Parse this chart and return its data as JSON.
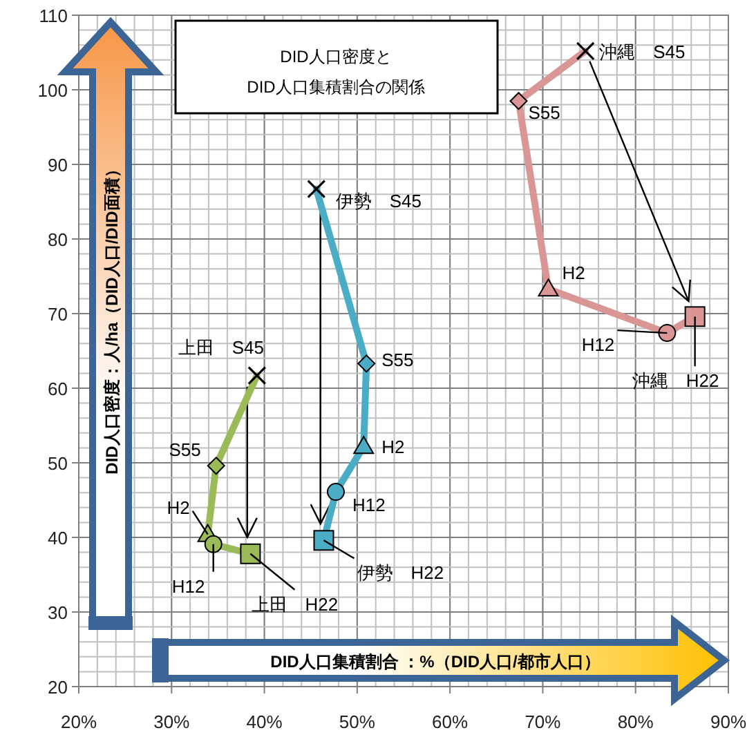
{
  "chart_data": {
    "type": "line",
    "title": "DID人口密度と\nDID人口集積割合の関係",
    "xlabel": "DID人口集積割合 ：%（DID人口/都市人口）",
    "ylabel": "DID人口密度：人/ha（DID人口/DID面積）",
    "xlim": [
      20,
      90
    ],
    "ylim": [
      20,
      110
    ],
    "xticks": [
      {
        "value": 20,
        "label": "20%"
      },
      {
        "value": 30,
        "label": "30%"
      },
      {
        "value": 40,
        "label": "40%"
      },
      {
        "value": 50,
        "label": "50%"
      },
      {
        "value": 60,
        "label": "60%"
      },
      {
        "value": 70,
        "label": "70%"
      },
      {
        "value": 80,
        "label": "80%"
      },
      {
        "value": 90,
        "label": "90%"
      }
    ],
    "yticks": [
      20,
      30,
      40,
      50,
      60,
      70,
      80,
      90,
      100,
      110
    ],
    "grid": true,
    "series": [
      {
        "type": "line",
        "marker": "none",
        "color": "#d99694",
        "x": [
          74.6,
          67.4,
          70.6,
          83.4,
          86.4
        ],
        "values": [
          105.2,
          98.5,
          73.3,
          67.4,
          69.6
        ]
      },
      {
        "type": "line",
        "marker": "none",
        "color": "#4bacc6",
        "x": [
          45.6,
          51.0,
          50.7,
          47.7,
          46.4
        ],
        "values": [
          86.7,
          63.3,
          52.2,
          46.1,
          39.6
        ]
      },
      {
        "type": "line",
        "marker": "none",
        "color": "#9bbb59",
        "x": [
          39.2,
          34.8,
          33.9,
          34.5,
          38.5
        ],
        "values": [
          61.7,
          49.6,
          40.4,
          39.1,
          37.8
        ]
      },
      {
        "type": "scatter",
        "marker": "cross",
        "x": [
          74.6,
          45.6,
          39.2
        ],
        "values": [
          105.2,
          86.7,
          61.7
        ],
        "colors": [
          "#000000",
          "#000000",
          "#000000"
        ]
      },
      {
        "type": "scatter",
        "marker": "diamond",
        "x": [
          67.4,
          51.0,
          34.8
        ],
        "values": [
          98.5,
          63.3,
          49.6
        ],
        "colors": [
          "#d99694",
          "#4bacc6",
          "#9bbb59"
        ]
      },
      {
        "type": "scatter",
        "marker": "triangle",
        "x": [
          70.6,
          50.7,
          33.9
        ],
        "values": [
          73.3,
          52.2,
          40.4
        ],
        "colors": [
          "#d99694",
          "#4bacc6",
          "#9bbb59"
        ]
      },
      {
        "type": "scatter",
        "marker": "circle",
        "x": [
          83.4,
          47.7,
          34.5
        ],
        "values": [
          67.4,
          46.1,
          39.1
        ],
        "colors": [
          "#d99694",
          "#4bacc6",
          "#9bbb59"
        ]
      },
      {
        "type": "scatter",
        "marker": "square",
        "x": [
          86.4,
          46.4,
          38.5
        ],
        "values": [
          69.6,
          39.6,
          37.8
        ],
        "colors": [
          "#d99694",
          "#4bacc6",
          "#9bbb59"
        ]
      }
    ],
    "annotations": [
      {
        "text": "沖縄　S45",
        "x": 74.6,
        "y": 105.2
      },
      {
        "text": "S55",
        "x": 67.4,
        "y": 98.5
      },
      {
        "text": "H2",
        "x": 70.6,
        "y": 73.3
      },
      {
        "text": "H12",
        "x": 83.4,
        "y": 67.4
      },
      {
        "text": "沖縄　H22",
        "x": 86.4,
        "y": 69.6
      },
      {
        "text": "伊勢　S45",
        "x": 45.6,
        "y": 86.7
      },
      {
        "text": "S55",
        "x": 51.0,
        "y": 63.3
      },
      {
        "text": "H2",
        "x": 50.7,
        "y": 52.2
      },
      {
        "text": "H12",
        "x": 47.7,
        "y": 46.1
      },
      {
        "text": "伊勢　H22",
        "x": 46.4,
        "y": 39.6
      },
      {
        "text": "上田　S45",
        "x": 39.2,
        "y": 61.7
      },
      {
        "text": "S55",
        "x": 34.8,
        "y": 49.6
      },
      {
        "text": "H2",
        "x": 33.9,
        "y": 40.4
      },
      {
        "text": "H12",
        "x": 34.5,
        "y": 39.1
      },
      {
        "text": "上田　H22",
        "x": 38.5,
        "y": 37.8
      }
    ]
  }
}
